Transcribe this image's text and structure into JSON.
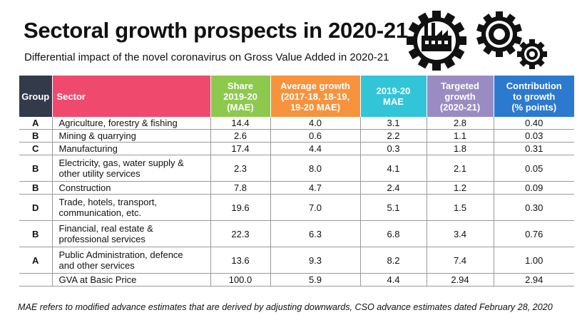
{
  "header": {
    "title": "Sectoral growth prospects in 2020-21",
    "subtitle": "Differential impact of the novel coronavirus on Gross Value Added in 2020-21"
  },
  "table": {
    "columns": [
      "Group",
      "Sector",
      "Share 2019-20 (MAE)",
      "Average growth (2017-18, 18-19, 19-20 MAE)",
      "2019-20 MAE",
      "Targeted growth (2020-21)",
      "Contribution to growth (% points)"
    ],
    "column_lines": {
      "share": [
        "Share",
        "2019-20",
        "(MAE)"
      ],
      "avg": [
        "Average growth",
        "(2017-18, 18-19,",
        "19-20 MAE)"
      ],
      "mae": [
        "2019-20",
        "MAE"
      ],
      "target": [
        "Targeted",
        "growth",
        "(2020-21)"
      ],
      "contrib": [
        "Contribution",
        "to growth",
        "(% points)"
      ]
    },
    "rows": [
      {
        "group": "A",
        "sector": [
          "Agriculture, forestry & fishing"
        ],
        "share": "14.4",
        "avg": "4.0",
        "mae": "3.1",
        "target": "2.8",
        "contrib": "0.40"
      },
      {
        "group": "B",
        "sector": [
          "Mining & quarrying"
        ],
        "share": "2.6",
        "avg": "0.6",
        "mae": "2.2",
        "target": "1.1",
        "contrib": "0.03"
      },
      {
        "group": "C",
        "sector": [
          "Manufacturing"
        ],
        "share": "17.4",
        "avg": "4.4",
        "mae": "0.3",
        "target": "1.8",
        "contrib": "0.31"
      },
      {
        "group": "B",
        "sector": [
          "Electricity, gas, water supply &",
          "other utility services"
        ],
        "share": "2.3",
        "avg": "8.0",
        "mae": "4.1",
        "target": "2.1",
        "contrib": "0.05"
      },
      {
        "group": "B",
        "sector": [
          "Construction"
        ],
        "share": "7.8",
        "avg": "4.7",
        "mae": "2.4",
        "target": "1.2",
        "contrib": "0.09"
      },
      {
        "group": "D",
        "sector": [
          "Trade, hotels, transport,",
          "communication, etc."
        ],
        "share": "19.6",
        "avg": "7.0",
        "mae": "5.1",
        "target": "1.5",
        "contrib": "0.30"
      },
      {
        "group": "B",
        "sector": [
          "Financial, real estate &",
          "professional services"
        ],
        "share": "22.3",
        "avg": "6.3",
        "mae": "6.8",
        "target": "3.4",
        "contrib": "0.76"
      },
      {
        "group": "A",
        "sector": [
          "Public Administration, defence",
          "and other services"
        ],
        "share": "13.6",
        "avg": "9.3",
        "mae": "8.2",
        "target": "7.4",
        "contrib": "1.00"
      },
      {
        "group": "",
        "sector": [
          "GVA at Basic Price"
        ],
        "share": "100.0",
        "avg": "5.9",
        "mae": "4.4",
        "target": "2.94",
        "contrib": "2.94"
      }
    ]
  },
  "footnote": "MAE refers to modified advance estimates that are derived by adjusting downwards, CSO advance estimates dated February 28, 2020",
  "colors": {
    "group_header": "#333b4a",
    "sector_header": "#ef4a6e",
    "share_header": "#8dc94d",
    "avg_header": "#f7933c",
    "mae_header": "#32c5d8",
    "target_header": "#9a8cc2",
    "contrib_header": "#2c7ad0"
  },
  "icons": [
    "factory-gear-icon",
    "large-gear-icon",
    "small-gear-icon"
  ]
}
